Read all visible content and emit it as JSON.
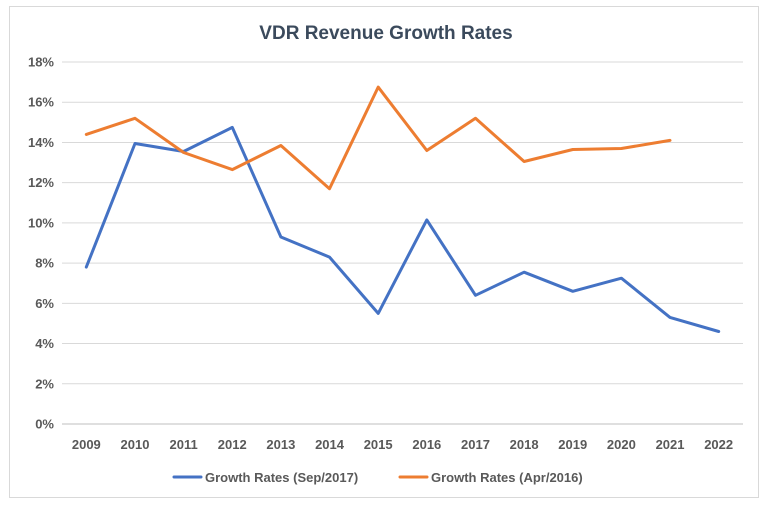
{
  "chart_data": {
    "type": "line",
    "title": "VDR Revenue Growth Rates",
    "xlabel": "",
    "ylabel": "",
    "x": [
      "2009",
      "2010",
      "2011",
      "2012",
      "2013",
      "2014",
      "2015",
      "2016",
      "2017",
      "2018",
      "2019",
      "2020",
      "2021",
      "2022"
    ],
    "y_ticks": [
      "0%",
      "2%",
      "4%",
      "6%",
      "8%",
      "10%",
      "12%",
      "14%",
      "16%",
      "18%"
    ],
    "ylim": [
      0,
      18
    ],
    "grid": true,
    "legend_position": "bottom",
    "series": [
      {
        "name": "Growth Rates (Sep/2017)",
        "color": "#4472c4",
        "values": [
          7.8,
          13.95,
          13.55,
          14.75,
          9.3,
          8.3,
          5.5,
          10.15,
          6.4,
          7.55,
          6.6,
          7.25,
          5.3,
          4.6
        ]
      },
      {
        "name": "Growth Rates (Apr/2016)",
        "color": "#ed7d31",
        "values": [
          14.4,
          15.2,
          13.5,
          12.65,
          13.85,
          11.7,
          16.75,
          13.6,
          15.2,
          13.05,
          13.65,
          13.7,
          14.1,
          null
        ]
      }
    ]
  }
}
